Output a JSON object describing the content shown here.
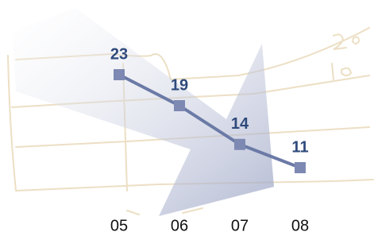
{
  "chart_data": {
    "type": "line",
    "categories": [
      "05",
      "06",
      "07",
      "08"
    ],
    "series": [
      {
        "color": "#6b7aa6",
        "values": [
          23,
          19,
          14,
          11
        ]
      }
    ]
  }
}
